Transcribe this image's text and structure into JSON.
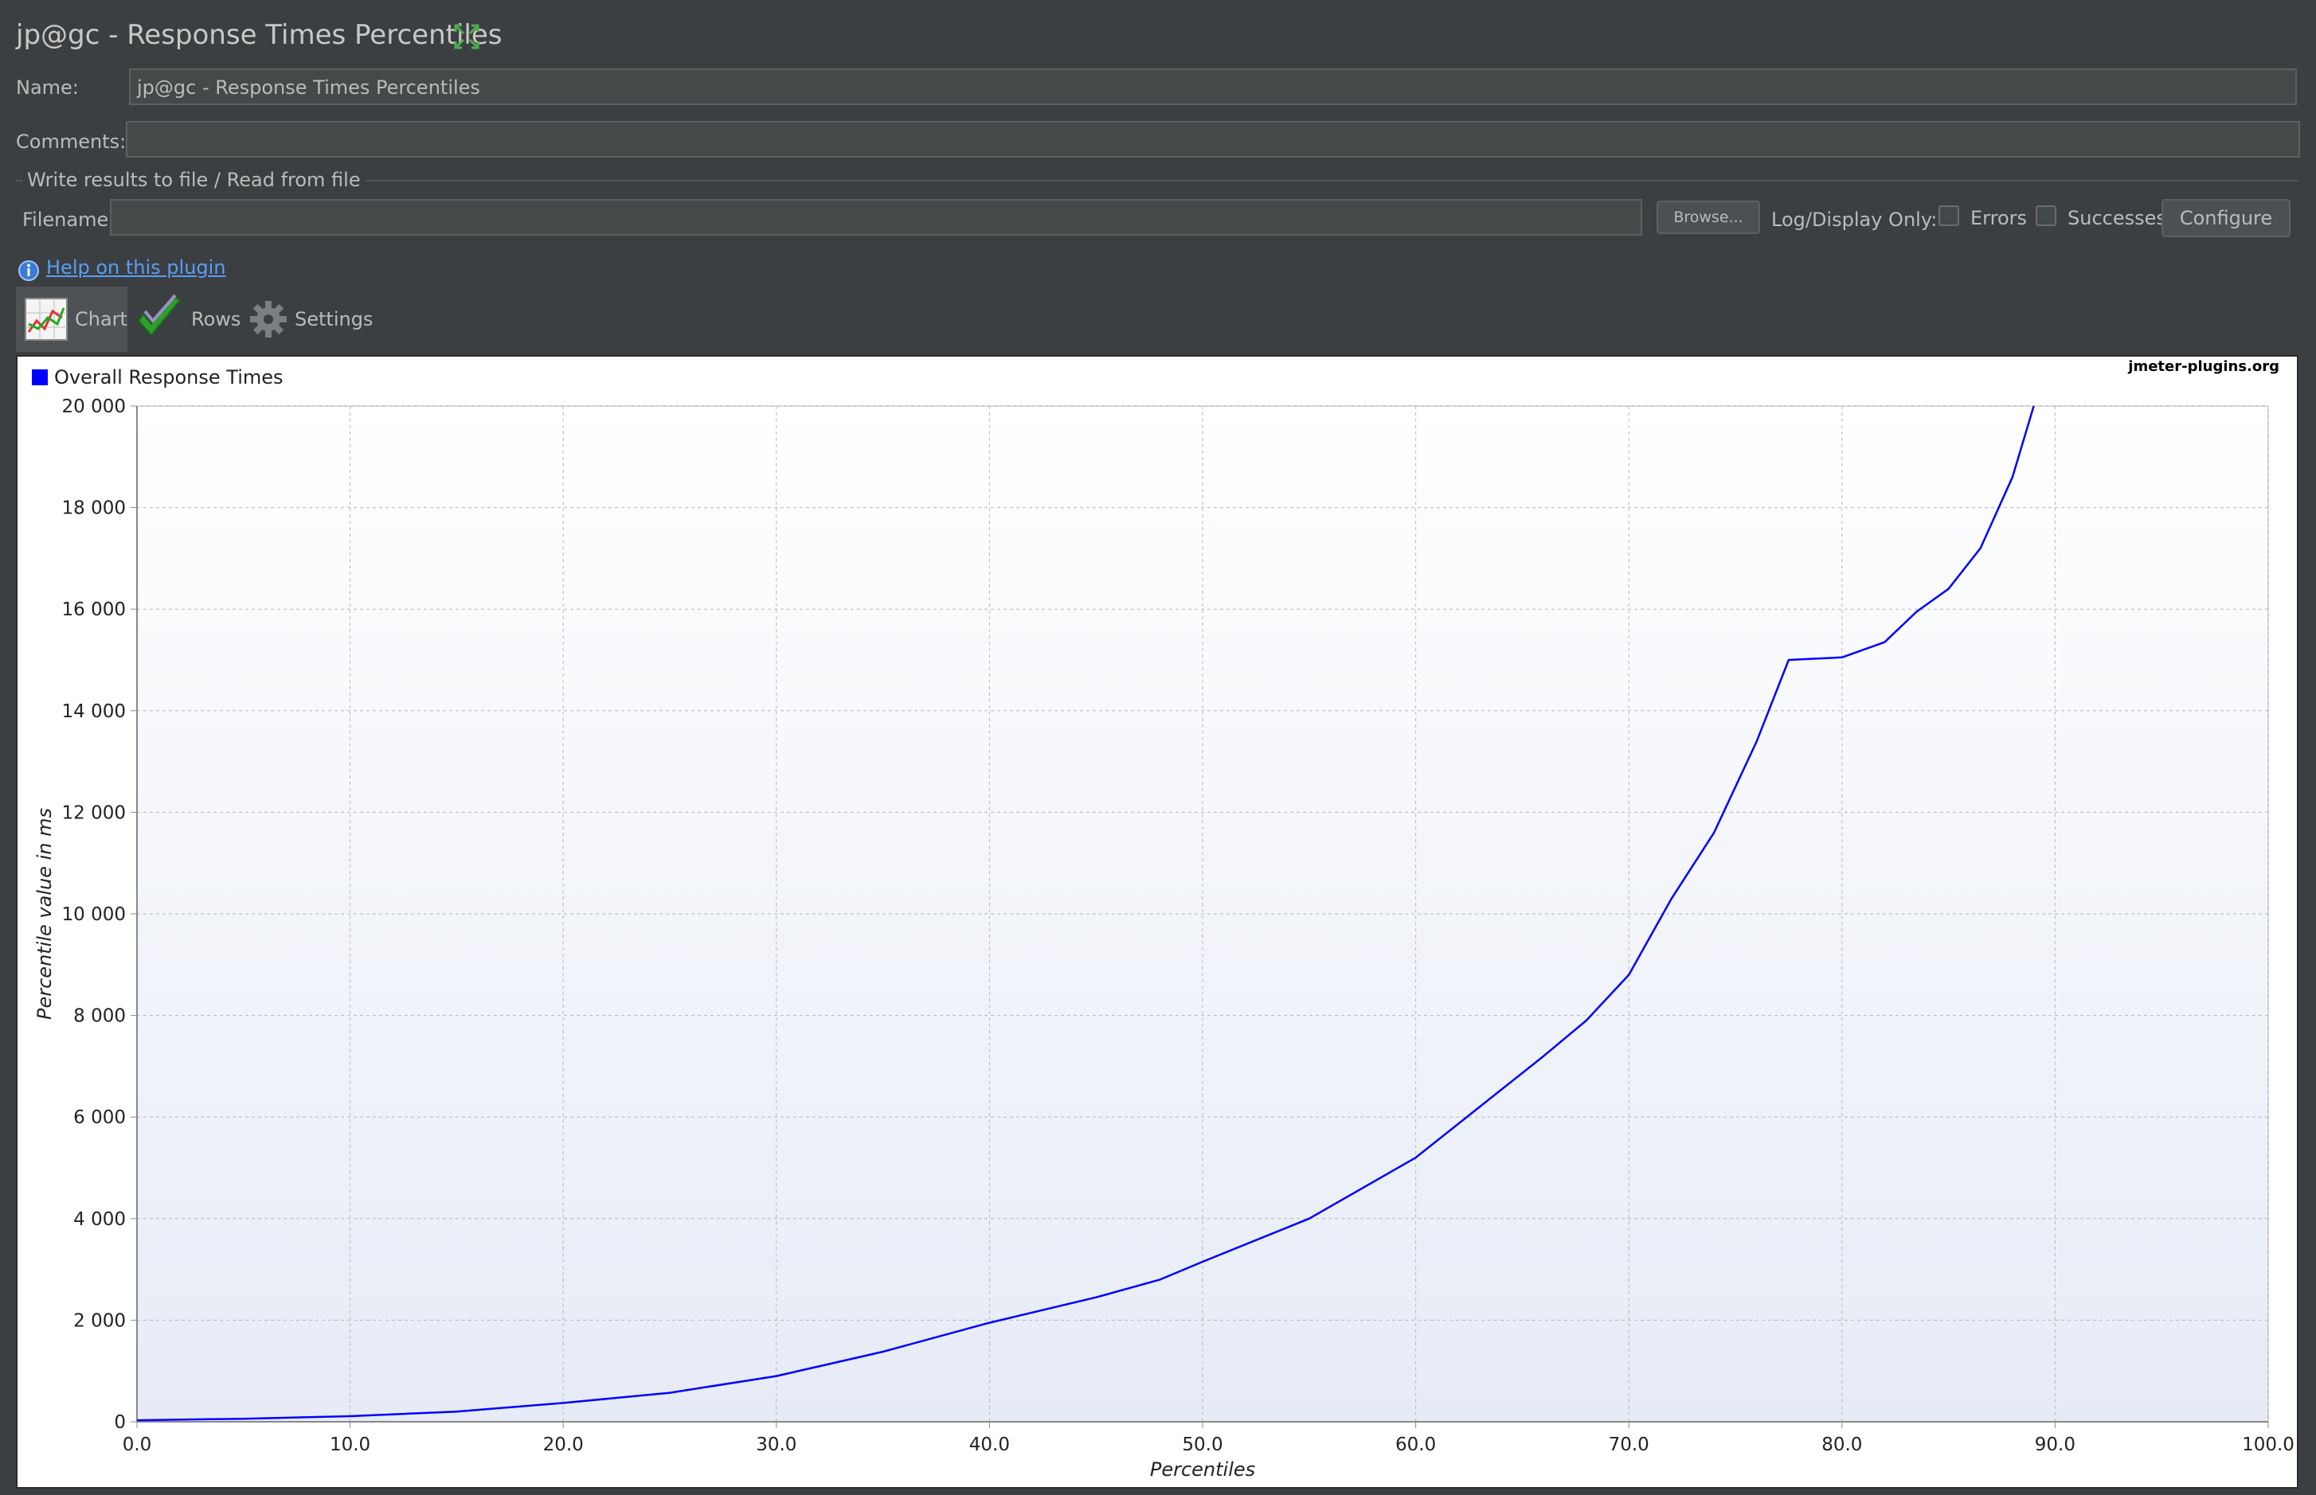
{
  "window": {
    "title": "jp@gc - Response Times Percentiles"
  },
  "form": {
    "name_label": "Name:",
    "name_value": "jp@gc - Response Times Percentiles",
    "comments_label": "Comments:",
    "comments_value": "",
    "fieldset_title": "Write results to file / Read from file",
    "filename_label": "Filename",
    "filename_value": "",
    "browse_label": "Browse...",
    "log_display_label": "Log/Display Only:",
    "errors_label": "Errors",
    "errors_checked": false,
    "successes_label": "Successes",
    "successes_checked": false,
    "configure_label": "Configure"
  },
  "help_link": "Help on this plugin",
  "tabs": [
    {
      "label": "Chart",
      "icon": "chart-icon",
      "active": true
    },
    {
      "label": "Rows",
      "icon": "checkmark-icon",
      "active": false
    },
    {
      "label": "Settings",
      "icon": "gear-icon",
      "active": false
    }
  ],
  "watermark": "jmeter-plugins.org",
  "colors": {
    "series": "#0000ff",
    "background": "#3c3f41",
    "link": "#589df6"
  },
  "chart_data": {
    "type": "line",
    "title": "",
    "xlabel": "Percentiles",
    "ylabel": "Percentile value in ms",
    "xlim": [
      0,
      100
    ],
    "ylim": [
      0,
      20000
    ],
    "x_ticks": [
      "0.0",
      "10.0",
      "20.0",
      "30.0",
      "40.0",
      "50.0",
      "60.0",
      "70.0",
      "80.0",
      "90.0",
      "100.0"
    ],
    "y_ticks": [
      "0",
      "2 000",
      "4 000",
      "6 000",
      "8 000",
      "10 000",
      "12 000",
      "14 000",
      "16 000",
      "18 000",
      "20 000"
    ],
    "grid": true,
    "legend_position": "top-left",
    "series": [
      {
        "name": "Overall Response Times",
        "color": "#0000ff",
        "points": [
          [
            0,
            30
          ],
          [
            5,
            60
          ],
          [
            10,
            110
          ],
          [
            15,
            200
          ],
          [
            20,
            370
          ],
          [
            25,
            570
          ],
          [
            30,
            900
          ],
          [
            35,
            1380
          ],
          [
            40,
            1950
          ],
          [
            45,
            2450
          ],
          [
            48,
            2800
          ],
          [
            50,
            3150
          ],
          [
            55,
            4000
          ],
          [
            60,
            5200
          ],
          [
            63,
            6200
          ],
          [
            66,
            7200
          ],
          [
            68,
            7900
          ],
          [
            70,
            8800
          ],
          [
            72,
            10300
          ],
          [
            74,
            11600
          ],
          [
            76,
            13400
          ],
          [
            77.5,
            15000
          ],
          [
            80,
            15050
          ],
          [
            82,
            15350
          ],
          [
            83.5,
            15950
          ],
          [
            85,
            16400
          ],
          [
            86.5,
            17200
          ],
          [
            88,
            18600
          ],
          [
            89,
            20000
          ]
        ]
      }
    ]
  }
}
